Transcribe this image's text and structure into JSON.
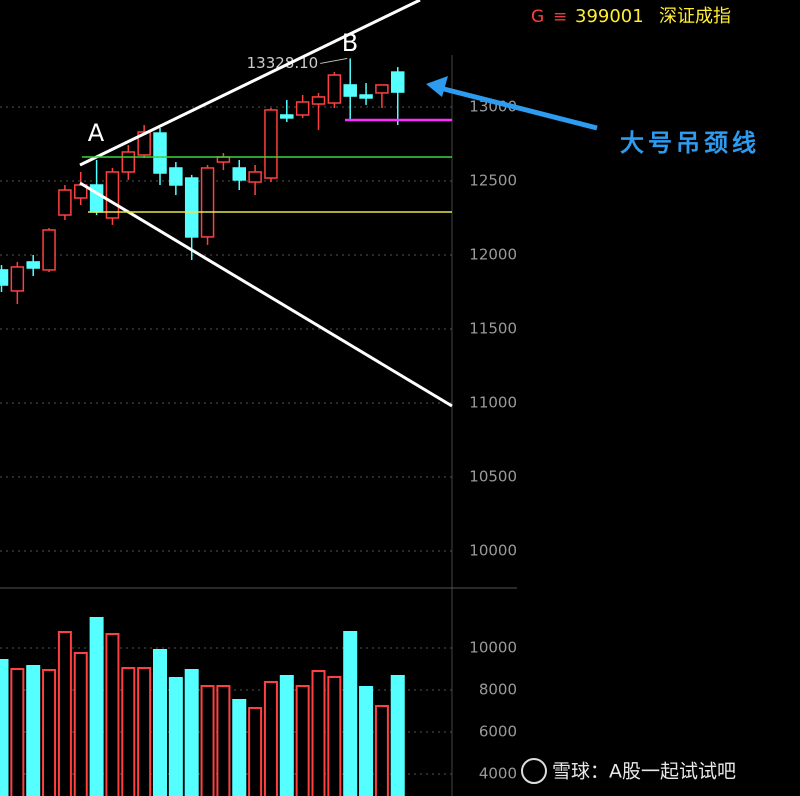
{
  "chart_data": [
    {
      "type": "candlestick",
      "categories": [
        null,
        null,
        null,
        null,
        null,
        null,
        null,
        null,
        null,
        null,
        null,
        null,
        null,
        null,
        null,
        null,
        null,
        null,
        null,
        null,
        null,
        null,
        null,
        null,
        null,
        null
      ],
      "open": [
        11899,
        11757,
        11953,
        11899,
        12270,
        12385,
        12473,
        12250,
        12561,
        12676,
        12824,
        12588,
        12520,
        12122,
        12628,
        12588,
        12493,
        12520,
        12946,
        12946,
        13020,
        13027,
        13149,
        13081,
        13095,
        13236
      ],
      "high": [
        11932,
        11953,
        12000,
        12182,
        12473,
        12561,
        12642,
        12588,
        12743,
        12878,
        12858,
        12628,
        12541,
        12608,
        12689,
        12642,
        12608,
        12993,
        13047,
        13081,
        13095,
        13236,
        13328.1,
        13162,
        13149,
        13270
      ],
      "low": [
        11750,
        11669,
        11858,
        11885,
        12236,
        12338,
        12270,
        12203,
        12507,
        12655,
        12473,
        12405,
        11966,
        12068,
        12574,
        12439,
        12405,
        12493,
        12899,
        12926,
        12845,
        12993,
        12912,
        13014,
        12993,
        12878
      ],
      "close": [
        11797,
        11919,
        11912,
        12169,
        12439,
        12473,
        12291,
        12561,
        12696,
        12831,
        12554,
        12473,
        12122,
        12588,
        12662,
        12507,
        12561,
        12980,
        12926,
        13034,
        13068,
        13216,
        13074,
        13061,
        13149,
        13101
      ],
      "high_value_labels": [
        null,
        null,
        null,
        null,
        null,
        null,
        null,
        null,
        null,
        null,
        null,
        null,
        null,
        null,
        null,
        null,
        null,
        null,
        null,
        null,
        null,
        null,
        "13328.10",
        null,
        null,
        null
      ],
      "up_color": "#ff4040",
      "down_color": "#55ffff",
      "ylim": [
        9770,
        13723
      ],
      "yticks": [
        10000,
        10500,
        11000,
        11500,
        12000,
        12500,
        13000
      ],
      "grid": true
    },
    {
      "type": "bar",
      "values": [
        9429,
        9000,
        9143,
        8952,
        10762,
        9762,
        11429,
        10667,
        9048,
        9048,
        9905,
        8571,
        8952,
        8190,
        8190,
        7524,
        7143,
        8381,
        8667,
        8190,
        8905,
        8619,
        10762,
        8143,
        7238,
        8667
      ],
      "ylim": [
        2952,
        12857
      ],
      "yticks": [
        4000,
        6000,
        8000,
        10000
      ],
      "grid": true
    }
  ],
  "annotations": {
    "point_a": "A",
    "point_b": "B",
    "neckline": "大号吊颈线"
  },
  "header": {
    "flag": "G",
    "menu": "≡",
    "code": "399001",
    "name": "深证成指"
  },
  "watermark": "雪球：A股一起试试吧"
}
